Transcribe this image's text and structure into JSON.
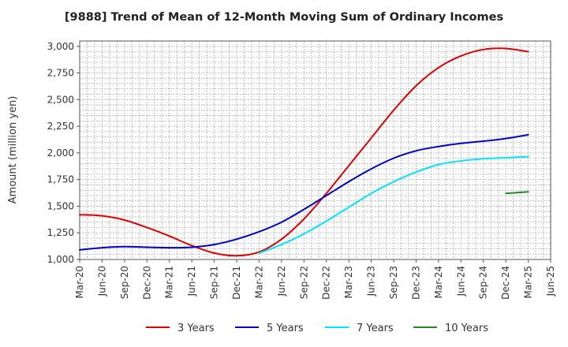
{
  "chart_data": {
    "type": "line",
    "title": "[9888]  Trend of Mean of 12-Month Moving Sum of Ordinary Incomes",
    "xlabel": "",
    "ylabel": "Amount (million yen)",
    "ylim": [
      1000,
      3050
    ],
    "yticks": [
      1000,
      1250,
      1500,
      1750,
      2000,
      2250,
      2500,
      2750,
      3000
    ],
    "ytick_labels": [
      "1,000",
      "1,250",
      "1,500",
      "1,750",
      "2,000",
      "2,250",
      "2,500",
      "2,750",
      "3,000"
    ],
    "categories": [
      "Mar-20",
      "Jun-20",
      "Sep-20",
      "Dec-20",
      "Mar-21",
      "Jun-21",
      "Sep-21",
      "Dec-21",
      "Mar-22",
      "Jun-22",
      "Sep-22",
      "Dec-22",
      "Mar-23",
      "Jun-23",
      "Sep-23",
      "Dec-23",
      "Mar-24",
      "Jun-24",
      "Sep-24",
      "Dec-24",
      "Mar-25",
      "Jun-25"
    ],
    "grid": true,
    "legend_position": "bottom",
    "series": [
      {
        "name": "3 Years",
        "color": "#e00000",
        "values": [
          1420,
          1410,
          1370,
          1300,
          1220,
          1130,
          1060,
          1035,
          1070,
          1190,
          1380,
          1620,
          1880,
          2140,
          2400,
          2630,
          2800,
          2910,
          2970,
          2980,
          2950,
          null
        ]
      },
      {
        "name": "5 Years",
        "color": "#0000cc",
        "values": [
          1090,
          1110,
          1120,
          1115,
          1110,
          1115,
          1140,
          1190,
          1260,
          1350,
          1470,
          1600,
          1730,
          1850,
          1950,
          2020,
          2060,
          2090,
          2110,
          2135,
          2170,
          null
        ]
      },
      {
        "name": "7 Years",
        "color": "#00e5ff",
        "values": [
          null,
          null,
          null,
          null,
          null,
          null,
          null,
          null,
          1060,
          1140,
          1240,
          1360,
          1490,
          1620,
          1730,
          1820,
          1890,
          1925,
          1945,
          1955,
          1965,
          null
        ]
      },
      {
        "name": "10 Years",
        "color": "#228b22",
        "values": [
          null,
          null,
          null,
          null,
          null,
          null,
          null,
          null,
          null,
          null,
          null,
          null,
          null,
          null,
          null,
          null,
          null,
          null,
          null,
          1620,
          1635,
          null
        ]
      }
    ]
  }
}
